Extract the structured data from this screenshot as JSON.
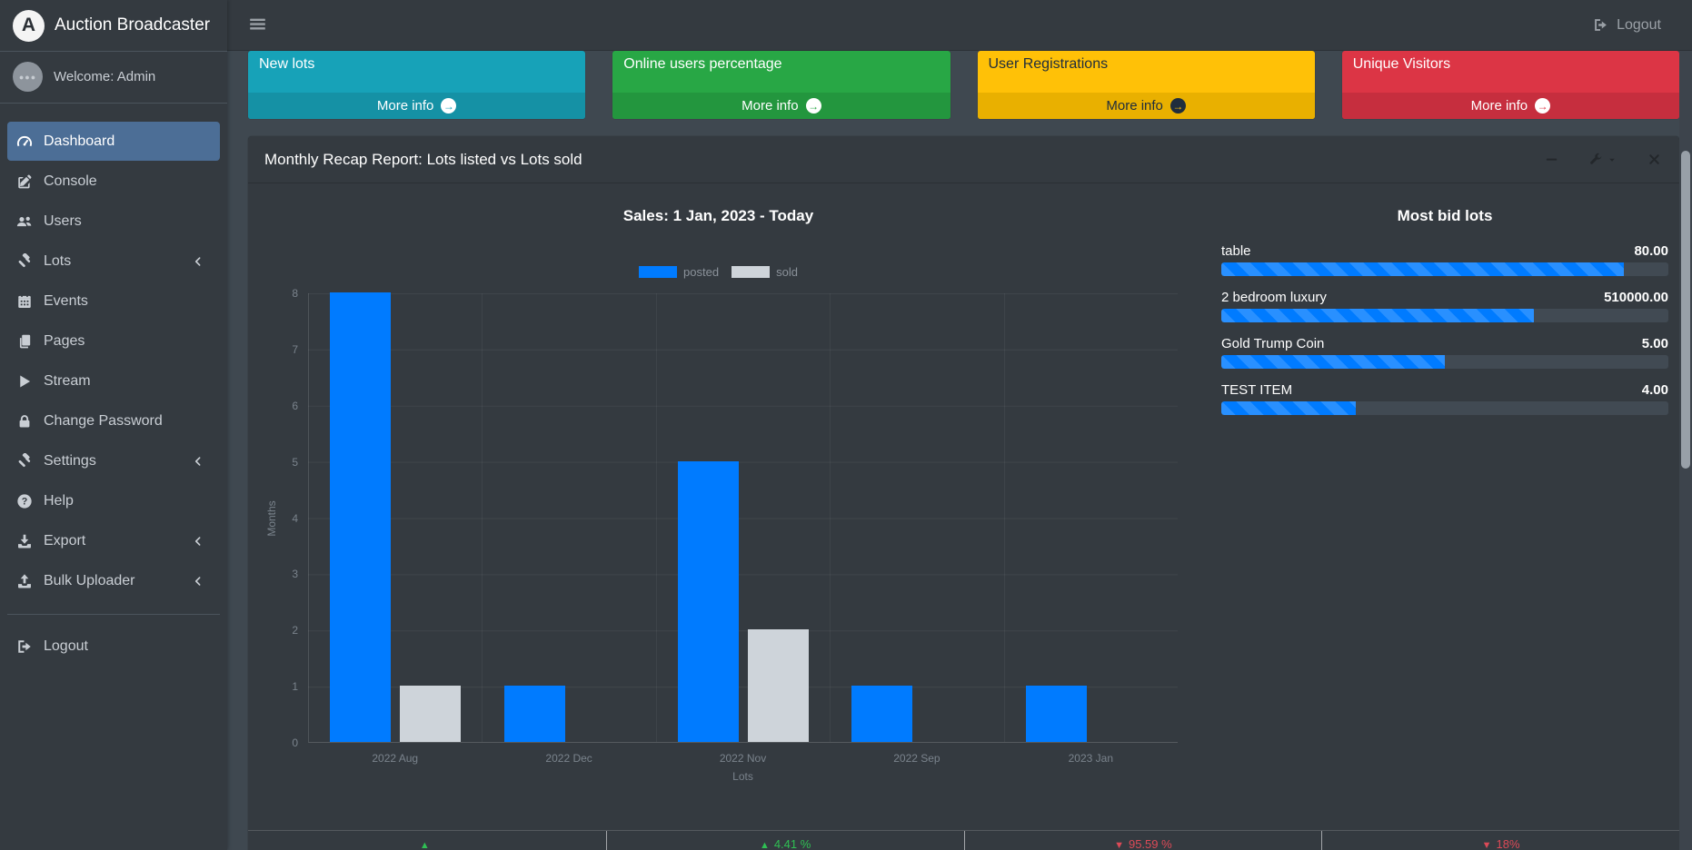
{
  "brand": {
    "logo_letter": "A",
    "title": "Auction Broadcaster"
  },
  "topbar": {
    "logout_label": "Logout"
  },
  "user_panel": {
    "welcome": "Welcome: Admin"
  },
  "sidebar": {
    "items": [
      {
        "label": "Dashboard",
        "icon": "tachometer-icon",
        "active": true,
        "has_children": false
      },
      {
        "label": "Console",
        "icon": "pen-square-icon",
        "active": false,
        "has_children": false
      },
      {
        "label": "Users",
        "icon": "users-icon",
        "active": false,
        "has_children": false
      },
      {
        "label": "Lots",
        "icon": "gavel-icon",
        "active": false,
        "has_children": true
      },
      {
        "label": "Events",
        "icon": "calendar-icon",
        "active": false,
        "has_children": false
      },
      {
        "label": "Pages",
        "icon": "copy-icon",
        "active": false,
        "has_children": false
      },
      {
        "label": "Stream",
        "icon": "play-icon",
        "active": false,
        "has_children": false
      },
      {
        "label": "Change Password",
        "icon": "lock-icon",
        "active": false,
        "has_children": false
      },
      {
        "label": "Settings",
        "icon": "gavel-icon",
        "active": false,
        "has_children": true
      },
      {
        "label": "Help",
        "icon": "question-circle-icon",
        "active": false,
        "has_children": false
      },
      {
        "label": "Export",
        "icon": "download-icon",
        "active": false,
        "has_children": true
      },
      {
        "label": "Bulk Uploader",
        "icon": "upload-icon",
        "active": false,
        "has_children": true
      }
    ],
    "logout": {
      "label": "Logout",
      "icon": "sign-out-icon"
    }
  },
  "info_boxes": [
    {
      "title": "New lots",
      "more_label": "More info",
      "color": "#17a2b8",
      "footer_color": "#1591a5",
      "text_color": "#ffffff"
    },
    {
      "title": "Online users percentage",
      "more_label": "More info",
      "color": "#28a745",
      "footer_color": "#23963e",
      "text_color": "#ffffff"
    },
    {
      "title": "User Registrations",
      "more_label": "More info",
      "color": "#ffc107",
      "footer_color": "#e9b000",
      "text_color": "#1f2d3d"
    },
    {
      "title": "Unique Visitors",
      "more_label": "More info",
      "color": "#dc3545",
      "footer_color": "#c62e3e",
      "text_color": "#ffffff"
    }
  ],
  "recap_card": {
    "title": "Monthly Recap Report: Lots listed vs Lots sold"
  },
  "chart_data": {
    "type": "bar",
    "title": "Sales: 1 Jan, 2023 - Today",
    "categories": [
      "2022 Aug",
      "2022 Dec",
      "2022 Nov",
      "2022 Sep",
      "2023 Jan"
    ],
    "series": [
      {
        "name": "posted",
        "color": "#007bff",
        "values": [
          8,
          1,
          5,
          1,
          1
        ]
      },
      {
        "name": "sold",
        "color": "#ced4da",
        "values": [
          1,
          0,
          2,
          0,
          0
        ]
      }
    ],
    "xlabel": "Lots",
    "ylabel": "Months",
    "ylim": [
      0,
      8
    ],
    "yticks": [
      0,
      1,
      2,
      3,
      4,
      5,
      6,
      7,
      8
    ],
    "legend_position": "top",
    "grid": true
  },
  "most_bid": {
    "title": "Most bid lots",
    "bar_color": "#007bff",
    "items": [
      {
        "label": "table",
        "value": "80.00",
        "percent": 90
      },
      {
        "label": "2 bedroom luxury",
        "value": "510000.00",
        "percent": 70
      },
      {
        "label": "Gold Trump Coin",
        "value": "5.00",
        "percent": 50
      },
      {
        "label": "TEST ITEM",
        "value": "4.00",
        "percent": 30
      }
    ]
  },
  "footer_stats": [
    {
      "direction": "up",
      "text": "",
      "color": "#2fbf53"
    },
    {
      "direction": "up",
      "text": "4.41 %",
      "color": "#2fbf53"
    },
    {
      "direction": "down",
      "text": "95.59 %",
      "color": "#dc4a57"
    },
    {
      "direction": "down",
      "text": "18%",
      "color": "#dc4a57"
    }
  ]
}
